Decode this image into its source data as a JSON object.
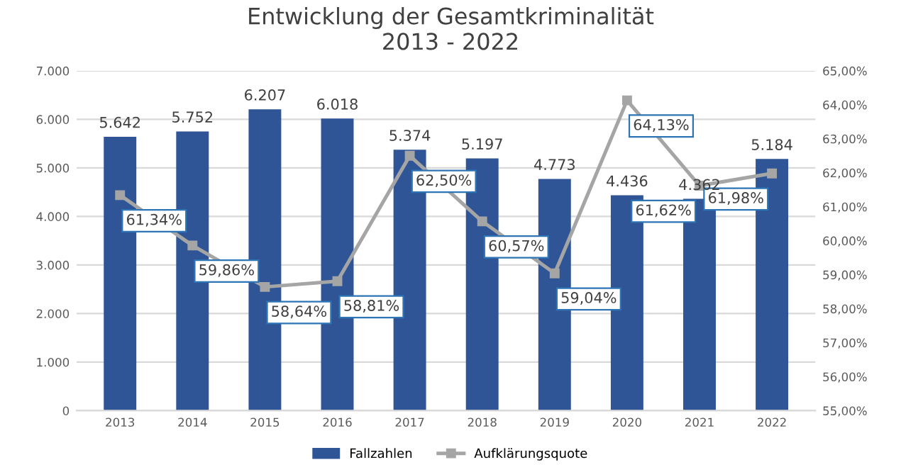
{
  "chart_data": {
    "type": "bar",
    "title": "Entwicklung der Gesamtkriminalität\n2013 - 2022",
    "categories": [
      "2013",
      "2014",
      "2015",
      "2016",
      "2017",
      "2018",
      "2019",
      "2020",
      "2021",
      "2022"
    ],
    "series": [
      {
        "name": "Fallzahlen",
        "color": "#2f5597",
        "values": [
          5642,
          5752,
          6207,
          6018,
          5374,
          5197,
          4773,
          4436,
          4362,
          5184
        ],
        "value_labels": [
          "5.642",
          "5.752",
          "6.207",
          "6.018",
          "5.374",
          "5.197",
          "4.773",
          "4.436",
          "4.362",
          "5.184"
        ]
      },
      {
        "name": "Aufklärungsquote",
        "type": "line",
        "axis": "y2",
        "color": "#a5a5a5",
        "marker": "square",
        "line_style": "solid",
        "values": [
          61.34,
          59.86,
          58.64,
          58.81,
          62.5,
          60.57,
          59.04,
          64.13,
          61.62,
          61.98
        ],
        "value_labels": [
          "61,34%",
          "59,86%",
          "58,64%",
          "58,81%",
          "62,50%",
          "60,57%",
          "59,04%",
          "64,13%",
          "61,62%",
          "61,98%"
        ]
      }
    ],
    "ylim": [
      0,
      7000
    ],
    "yticks": [
      0,
      {
        "value": 1000,
        "label": "1.000"
      },
      {
        "value": 2000,
        "label": "2.000"
      },
      {
        "value": 3000,
        "label": "3.000"
      },
      {
        "value": 4000,
        "label": "4.000"
      },
      {
        "value": 5000,
        "label": "5.000"
      },
      {
        "value": 6000,
        "label": "6.000"
      },
      {
        "value": 7000,
        "label": "7.000"
      }
    ],
    "y2lim": [
      55,
      65
    ],
    "y2ticks": [
      {
        "value": 55,
        "label": "55,00%"
      },
      {
        "value": 56,
        "label": "56,00%"
      },
      {
        "value": 57,
        "label": "57,00%"
      },
      {
        "value": 58,
        "label": "58,00%"
      },
      {
        "value": 59,
        "label": "59,00%"
      },
      {
        "value": 60,
        "label": "60,00%"
      },
      {
        "value": 61,
        "label": "61,00%"
      },
      {
        "value": 62,
        "label": "62,00%"
      },
      {
        "value": 63,
        "label": "63,00%"
      },
      {
        "value": 64,
        "label": "64,00%"
      },
      {
        "value": 65,
        "label": "65,00%"
      }
    ],
    "grid": "y",
    "legend": "bottom"
  }
}
